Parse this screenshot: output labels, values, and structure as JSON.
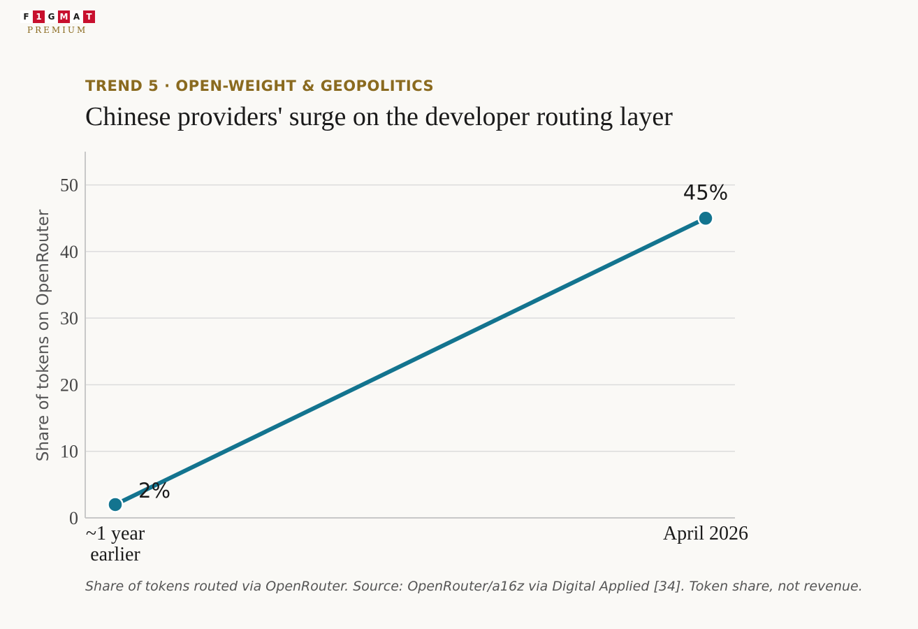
{
  "logo": {
    "letters": [
      "F",
      "1",
      "G",
      "M",
      "A",
      "T"
    ],
    "subtitle": "PREMIUM"
  },
  "header": {
    "kicker": "TREND 5 · OPEN-WEIGHT & GEOPOLITICS",
    "title": "Chinese providers' surge on the developer routing layer"
  },
  "caption": "Share of tokens routed via OpenRouter. Source: OpenRouter/a16z via Digital Applied [34]. Token share, not revenue.",
  "colors": {
    "series": "#13748f",
    "kicker": "#8a6a1f",
    "grid": "#dcdcdc",
    "logo_red": "#c8102e"
  },
  "chart_data": {
    "type": "line",
    "categories": [
      [
        "~1 year",
        "earlier"
      ],
      [
        "April 2026"
      ]
    ],
    "values": [
      2,
      45
    ],
    "data_labels": [
      "2%",
      "45%"
    ],
    "ylabel": "Share of tokens on OpenRouter",
    "ylim": [
      0,
      55
    ],
    "yticks": [
      0,
      10,
      20,
      30,
      40,
      50
    ],
    "grid": true
  }
}
